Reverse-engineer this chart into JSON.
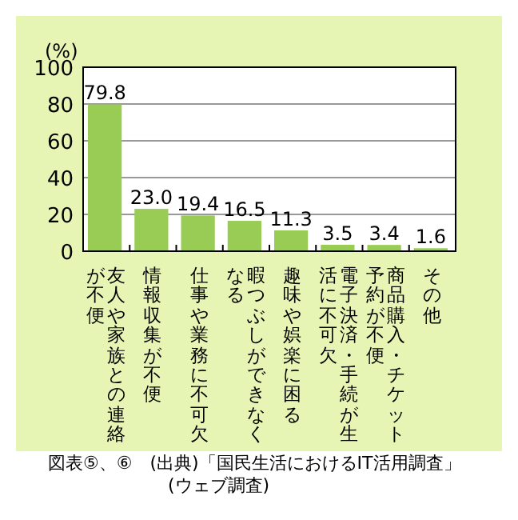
{
  "chart_data": {
    "type": "bar",
    "ylabel": "(%)",
    "categories": [
      "友人や家族との連絡が不便",
      "情報収集が不便",
      "仕事や業務に不可欠",
      "暇つぶしができなくなる",
      "趣味や娯楽に困る",
      "電子決済・手続が生活に不可欠",
      "商品購入・チケット予約が不便",
      "その他"
    ],
    "values": [
      79.8,
      23.0,
      19.4,
      16.5,
      11.3,
      3.5,
      3.4,
      1.6
    ],
    "value_labels": [
      "79.8",
      "23.0",
      "19.4",
      "16.5",
      "11.3",
      "3.5",
      "3.4",
      "1.6"
    ],
    "color": "#99cc55",
    "ylim": [
      0,
      100
    ],
    "yticks": [
      0,
      20,
      40,
      60,
      80,
      100
    ],
    "grid": "y",
    "annotations": [
      "図表⑤、⑥　(出典)「国民生活におけるIT活用調査」",
      "(ウェブ調査)"
    ]
  }
}
